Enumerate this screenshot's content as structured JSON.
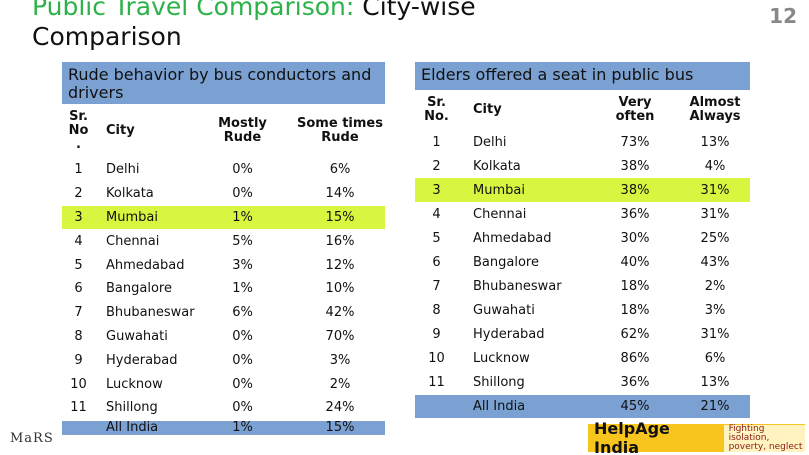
{
  "title": {
    "highlight": "Public Travel Comparison:",
    "rest": "City-wise Comparison"
  },
  "page_number": "12",
  "left_table": {
    "title": "Rude behavior by bus conductors and drivers",
    "columns": [
      "Sr.\nNo\n.",
      "City",
      "Mostly\nRude",
      "Some times\nRude"
    ],
    "rows": [
      [
        "1",
        "Delhi",
        "0%",
        "6%"
      ],
      [
        "2",
        "Kolkata",
        "0%",
        "14%"
      ],
      [
        "3",
        "Mumbai",
        "1%",
        "15%"
      ],
      [
        "4",
        "Chennai",
        "5%",
        "16%"
      ],
      [
        "5",
        "Ahmedabad",
        "3%",
        "12%"
      ],
      [
        "6",
        "Bangalore",
        "1%",
        "10%"
      ],
      [
        "7",
        "Bhubaneswar",
        "6%",
        "42%"
      ],
      [
        "8",
        "Guwahati",
        "0%",
        "70%"
      ],
      [
        "9",
        "Hyderabad",
        "0%",
        "3%"
      ],
      [
        "10",
        "Lucknow",
        "0%",
        "2%"
      ],
      [
        "11",
        "Shillong",
        "0%",
        "24%"
      ]
    ],
    "total": {
      "label": "All India",
      "values": [
        "1%",
        "15%"
      ]
    }
  },
  "right_table": {
    "title": "Elders offered a seat in public bus",
    "columns": [
      "Sr.\nNo.",
      "City",
      "Very\noften",
      "Almost\nAlways"
    ],
    "rows": [
      [
        "1",
        "Delhi",
        "73%",
        "13%"
      ],
      [
        "2",
        "Kolkata",
        "38%",
        "4%"
      ],
      [
        "3",
        "Mumbai",
        "38%",
        "31%"
      ],
      [
        "4",
        "Chennai",
        "36%",
        "31%"
      ],
      [
        "5",
        "Ahmedabad",
        "30%",
        "25%"
      ],
      [
        "6",
        "Bangalore",
        "40%",
        "43%"
      ],
      [
        "7",
        "Bhubaneswar",
        "18%",
        "2%"
      ],
      [
        "8",
        "Guwahati",
        "18%",
        "3%"
      ],
      [
        "9",
        "Hyderabad",
        "62%",
        "31%"
      ],
      [
        "10",
        "Lucknow",
        "86%",
        "6%"
      ],
      [
        "11",
        "Shillong",
        "36%",
        "13%"
      ]
    ],
    "total": {
      "label": "All India",
      "values": [
        "45%",
        "21%"
      ]
    }
  },
  "footer": {
    "left_logo": "MaRS",
    "brand": "HelpAge India",
    "tagline": "Fighting isolation,\npoverty, neglect"
  }
}
